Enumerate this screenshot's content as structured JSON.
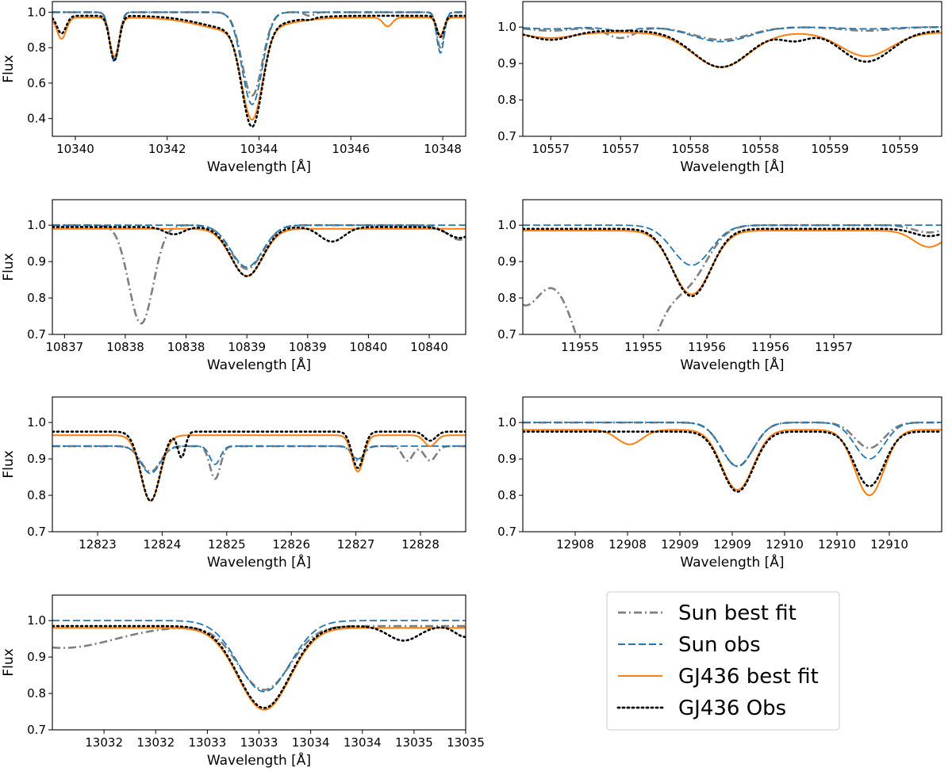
{
  "chart_data": [
    {
      "type": "line",
      "xlabel": "Wavelength [Å]",
      "ylabel": "Flux",
      "xlim": [
        10339.5,
        10348.5
      ],
      "ylim": [
        0.3,
        1.06
      ],
      "xticks": [
        10340,
        10342,
        10344,
        10346,
        10348
      ],
      "xtick_labels": [
        "10340",
        "10342",
        "10344",
        "10346",
        "10348"
      ],
      "yticks": [
        0.4,
        0.6,
        0.8,
        1.0
      ],
      "ytick_labels": [
        "0.4",
        "0.6",
        "0.8",
        "1.0"
      ],
      "continuum": {
        "sun_fit": 1.0,
        "sun_obs": 1.0,
        "gj_fit": 0.97,
        "gj_obs": 0.98
      },
      "lines": [
        {
          "c": 10340.85,
          "w": 0.1,
          "d": {
            "sun_fit": 0.27,
            "sun_obs": 0.28,
            "gj_fit": 0.22,
            "gj_obs": 0.25
          }
        },
        {
          "c": 10343.85,
          "w": 0.22,
          "d": {
            "sun_fit": 0.47,
            "sun_obs": 0.52,
            "gj_fit": 0.5,
            "gj_obs": 0.55
          }
        },
        {
          "c": 10343.6,
          "w": 0.8,
          "d": {
            "sun_fit": 0.0,
            "sun_obs": 0.0,
            "gj_fit": 0.08,
            "gj_obs": 0.08
          }
        },
        {
          "c": 10347.95,
          "w": 0.08,
          "d": {
            "sun_fit": 0.2,
            "sun_obs": 0.23,
            "gj_fit": 0.1,
            "gj_obs": 0.12
          }
        },
        {
          "c": 10339.7,
          "w": 0.1,
          "d": {
            "sun_fit": 0.0,
            "sun_obs": 0.0,
            "gj_fit": 0.12,
            "gj_obs": 0.1
          }
        },
        {
          "c": 10345.1,
          "w": 0.1,
          "d": {
            "sun_fit": 0.02,
            "sun_obs": 0.0,
            "gj_fit": 0.0,
            "gj_obs": 0.01
          }
        },
        {
          "c": 10346.8,
          "w": 0.1,
          "d": {
            "sun_fit": 0.0,
            "sun_obs": 0.0,
            "gj_fit": 0.05,
            "gj_obs": 0.0
          }
        }
      ]
    },
    {
      "type": "line",
      "xlabel": "Wavelength [Å]",
      "ylabel": "",
      "xlim": [
        10556.8,
        10559.8
      ],
      "ylim": [
        0.7,
        1.07
      ],
      "xticks": [
        10557.0,
        10557.5,
        10558.0,
        10558.5,
        10559.0,
        10559.5
      ],
      "xtick_labels": [
        "10557",
        "10557",
        "10558",
        "10558",
        "10559",
        "10559"
      ],
      "yticks": [
        0.7,
        0.8,
        0.9,
        1.0
      ],
      "ytick_labels": [
        "0.7",
        "0.8",
        "0.9",
        "1.0"
      ],
      "continuum": {
        "sun_fit": 1.0,
        "sun_obs": 1.0,
        "gj_fit": 0.985,
        "gj_obs": 0.99
      },
      "lines": [
        {
          "c": 10557.0,
          "w": 0.15,
          "d": {
            "sun_fit": 0.01,
            "sun_obs": 0.005,
            "gj_fit": 0.015,
            "gj_obs": 0.025
          }
        },
        {
          "c": 10557.5,
          "w": 0.1,
          "d": {
            "sun_fit": 0.03,
            "sun_obs": 0.01,
            "gj_fit": 0.0,
            "gj_obs": 0.0
          }
        },
        {
          "c": 10558.22,
          "w": 0.2,
          "d": {
            "sun_fit": 0.035,
            "sun_obs": 0.04,
            "gj_fit": 0.095,
            "gj_obs": 0.1
          }
        },
        {
          "c": 10559.26,
          "w": 0.18,
          "d": {
            "sun_fit": 0.01,
            "sun_obs": 0.005,
            "gj_fit": 0.065,
            "gj_obs": 0.085
          }
        },
        {
          "c": 10558.75,
          "w": 0.1,
          "d": {
            "sun_fit": 0.0,
            "sun_obs": 0.0,
            "gj_fit": 0.0,
            "gj_obs": 0.025
          }
        }
      ]
    },
    {
      "type": "line",
      "xlabel": "Wavelength [Å]",
      "ylabel": "Flux",
      "xlim": [
        10837.4,
        10840.8
      ],
      "ylim": [
        0.7,
        1.07
      ],
      "xticks": [
        10837.5,
        10838.0,
        10838.5,
        10839.0,
        10839.5,
        10840.0,
        10840.5
      ],
      "xtick_labels": [
        "10837",
        "10838",
        "10838",
        "10839",
        "10839",
        "10840",
        "10840"
      ],
      "yticks": [
        0.7,
        0.8,
        0.9,
        1.0
      ],
      "ytick_labels": [
        "0.7",
        "0.8",
        "0.9",
        "1.0"
      ],
      "continuum": {
        "sun_fit": 1.0,
        "sun_obs": 1.0,
        "gj_fit": 0.99,
        "gj_obs": 0.995
      },
      "lines": [
        {
          "c": 10838.13,
          "w": 0.1,
          "d": {
            "sun_fit": 0.27,
            "sun_obs": 0.0,
            "gj_fit": 0.0,
            "gj_obs": 0.0
          }
        },
        {
          "c": 10839.0,
          "w": 0.13,
          "d": {
            "sun_fit": 0.12,
            "sun_obs": 0.115,
            "gj_fit": 0.13,
            "gj_obs": 0.135
          }
        },
        {
          "c": 10838.4,
          "w": 0.08,
          "d": {
            "sun_fit": 0.0,
            "sun_obs": 0.0,
            "gj_fit": 0.0,
            "gj_obs": 0.02
          }
        },
        {
          "c": 10839.7,
          "w": 0.1,
          "d": {
            "sun_fit": 0.0,
            "sun_obs": 0.0,
            "gj_fit": 0.0,
            "gj_obs": 0.04
          }
        },
        {
          "c": 10840.75,
          "w": 0.1,
          "d": {
            "sun_fit": 0.04,
            "sun_obs": 0.0,
            "gj_fit": 0.0,
            "gj_obs": 0.03
          }
        }
      ]
    },
    {
      "type": "line",
      "xlabel": "Wavelength [Å]",
      "ylabel": "",
      "xlim": [
        11954.55,
        11957.85
      ],
      "ylim": [
        0.7,
        1.07
      ],
      "xticks": [
        11955.0,
        11955.5,
        11956.0,
        11956.5,
        11957.0
      ],
      "xtick_labels": [
        "11955",
        "11955",
        "11956",
        "11956",
        "11957"
      ],
      "yticks": [
        0.7,
        0.8,
        0.9,
        1.0
      ],
      "ytick_labels": [
        "0.7",
        "0.8",
        "0.9",
        "1.0"
      ],
      "continuum": {
        "sun_fit": 1.0,
        "sun_obs": 1.0,
        "gj_fit": 0.985,
        "gj_obs": 0.99
      },
      "lines": [
        {
          "c": 11955.28,
          "w": 0.28,
          "d": {
            "sun_fit": 0.55,
            "sun_obs": 0.0,
            "gj_fit": 0.0,
            "gj_obs": 0.0
          }
        },
        {
          "c": 11954.55,
          "w": 0.15,
          "d": {
            "sun_fit": 0.2,
            "sun_obs": 0.0,
            "gj_fit": 0.0,
            "gj_obs": 0.0
          }
        },
        {
          "c": 11955.88,
          "w": 0.15,
          "d": {
            "sun_fit": 0.105,
            "sun_obs": 0.11,
            "gj_fit": 0.175,
            "gj_obs": 0.185
          }
        },
        {
          "c": 11957.75,
          "w": 0.12,
          "d": {
            "sun_fit": 0.02,
            "sun_obs": 0.0,
            "gj_fit": 0.045,
            "gj_obs": 0.02
          }
        }
      ]
    },
    {
      "type": "line",
      "xlabel": "Wavelength [Å]",
      "ylabel": "Flux",
      "xlim": [
        12822.3,
        12828.7
      ],
      "ylim": [
        0.7,
        1.07
      ],
      "xticks": [
        12823,
        12824,
        12825,
        12826,
        12827,
        12828
      ],
      "xtick_labels": [
        "12823",
        "12824",
        "12825",
        "12826",
        "12827",
        "12828"
      ],
      "yticks": [
        0.7,
        0.8,
        0.9,
        1.0
      ],
      "ytick_labels": [
        "0.7",
        "0.8",
        "0.9",
        "1.0"
      ],
      "continuum": {
        "sun_fit": 0.935,
        "sun_obs": 0.935,
        "gj_fit": 0.965,
        "gj_obs": 0.975
      },
      "lines": [
        {
          "c": 12823.82,
          "w": 0.15,
          "d": {
            "sun_fit": 0.07,
            "sun_obs": 0.075,
            "gj_fit": 0.18,
            "gj_obs": 0.19
          }
        },
        {
          "c": 12824.82,
          "w": 0.08,
          "d": {
            "sun_fit": 0.09,
            "sun_obs": 0.05,
            "gj_fit": 0.0,
            "gj_obs": 0.0
          }
        },
        {
          "c": 12827.03,
          "w": 0.09,
          "d": {
            "sun_fit": 0.04,
            "sun_obs": 0.035,
            "gj_fit": 0.1,
            "gj_obs": 0.1
          }
        },
        {
          "c": 12828.15,
          "w": 0.09,
          "d": {
            "sun_fit": 0.04,
            "sun_obs": 0.0,
            "gj_fit": 0.03,
            "gj_obs": 0.025
          }
        },
        {
          "c": 12827.8,
          "w": 0.08,
          "d": {
            "sun_fit": 0.04,
            "sun_obs": 0.0,
            "gj_fit": 0.0,
            "gj_obs": 0.0
          }
        },
        {
          "c": 12824.3,
          "w": 0.06,
          "d": {
            "sun_fit": 0.0,
            "sun_obs": 0.0,
            "gj_fit": 0.0,
            "gj_obs": 0.07
          }
        }
      ]
    },
    {
      "type": "line",
      "xlabel": "Wavelength [Å]",
      "ylabel": "",
      "xlim": [
        12907.0,
        12911.0
      ],
      "ylim": [
        0.7,
        1.07
      ],
      "xticks": [
        12907.5,
        12908.0,
        12908.5,
        12909.0,
        12909.5,
        12910.0,
        12910.5
      ],
      "xtick_labels": [
        "12908",
        "12908",
        "12909",
        "12909",
        "12910",
        "12910",
        "12910"
      ],
      "yticks": [
        0.7,
        0.8,
        0.9,
        1.0
      ],
      "ytick_labels": [
        "0.7",
        "0.8",
        "0.9",
        "1.0"
      ],
      "continuum": {
        "sun_fit": 1.0,
        "sun_obs": 1.0,
        "gj_fit": 0.98,
        "gj_obs": 0.975
      },
      "lines": [
        {
          "c": 12909.05,
          "w": 0.15,
          "d": {
            "sun_fit": 0.12,
            "sun_obs": 0.12,
            "gj_fit": 0.165,
            "gj_obs": 0.165
          }
        },
        {
          "c": 12910.31,
          "w": 0.14,
          "d": {
            "sun_fit": 0.07,
            "sun_obs": 0.1,
            "gj_fit": 0.18,
            "gj_obs": 0.15
          }
        },
        {
          "c": 12908.02,
          "w": 0.12,
          "d": {
            "sun_fit": 0.0,
            "sun_obs": 0.0,
            "gj_fit": 0.04,
            "gj_obs": 0.0
          }
        }
      ]
    },
    {
      "type": "line",
      "xlabel": "Wavelength [Å]",
      "ylabel": "Flux",
      "xlim": [
        13031.0,
        13035.0
      ],
      "ylim": [
        0.7,
        1.07
      ],
      "xticks": [
        13031.5,
        13032.0,
        13032.5,
        13033.0,
        13033.5,
        13034.0,
        13034.5,
        13035.0
      ],
      "xtick_labels": [
        "13032",
        "13032",
        "13033",
        "13033",
        "13034",
        "13034",
        "13035",
        "13035"
      ],
      "yticks": [
        0.7,
        0.8,
        0.9,
        1.0
      ],
      "ytick_labels": [
        "0.7",
        "0.8",
        "0.9",
        "1.0"
      ],
      "continuum": {
        "sun_fit": 0.985,
        "sun_obs": 1.0,
        "gj_fit": 0.98,
        "gj_obs": 0.985
      },
      "lines": [
        {
          "c": 13033.05,
          "w": 0.25,
          "d": {
            "sun_fit": 0.175,
            "sun_obs": 0.195,
            "gj_fit": 0.225,
            "gj_obs": 0.225
          }
        },
        {
          "c": 13031.1,
          "w": 0.5,
          "d": {
            "sun_fit": 0.06,
            "sun_obs": 0.0,
            "gj_fit": 0.0,
            "gj_obs": 0.0
          }
        },
        {
          "c": 13034.4,
          "w": 0.15,
          "d": {
            "sun_fit": 0.0,
            "sun_obs": 0.0,
            "gj_fit": 0.0,
            "gj_obs": 0.04
          }
        },
        {
          "c": 13035.0,
          "w": 0.1,
          "d": {
            "sun_fit": 0.0,
            "sun_obs": 0.0,
            "gj_fit": 0.0,
            "gj_obs": 0.03
          }
        }
      ]
    }
  ],
  "series": [
    {
      "key": "sun_fit",
      "name": "Sun best fit",
      "color": "#808080",
      "style": "dashdot"
    },
    {
      "key": "sun_obs",
      "name": "Sun obs",
      "color": "#1f77b4",
      "style": "dashed"
    },
    {
      "key": "gj_fit",
      "name": "GJ436 best fit",
      "color": "#ff7f0e",
      "style": "solid"
    },
    {
      "key": "gj_obs",
      "name": "GJ436 Obs",
      "color": "#000000",
      "style": "dotted"
    }
  ],
  "legend": {
    "position": "lower-right",
    "items": [
      "Sun best fit",
      "Sun obs",
      "GJ436 best fit",
      "GJ436 Obs"
    ]
  }
}
